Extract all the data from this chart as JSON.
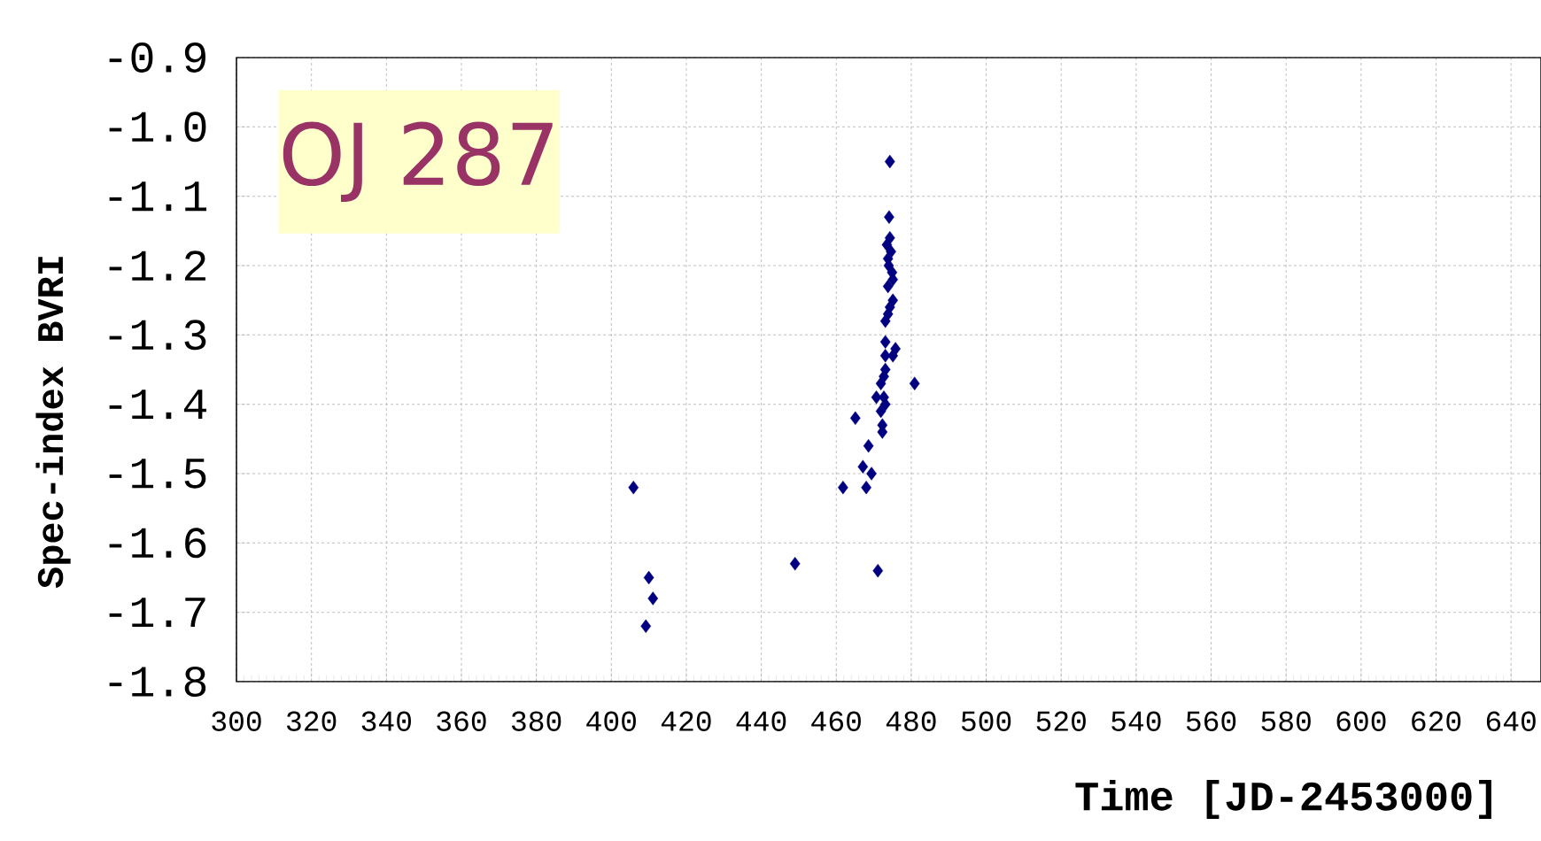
{
  "chart_data": {
    "type": "scatter",
    "xlabel": "Time [JD-2453000]",
    "ylabel": "Spec-index BVRI",
    "annotations": [
      "OJ 287"
    ],
    "x": [
      474.3,
      474.1,
      474.3,
      473.5,
      474.6,
      473.8,
      474.0,
      474.9,
      475.1,
      473.8,
      475.1,
      474.3,
      473.8,
      473.1,
      473.1,
      475.8,
      475.1,
      473.1,
      473.1,
      472.7,
      471.9,
      470.7,
      472.7,
      473.1,
      471.9,
      472.3,
      472.3,
      480.9,
      465.1,
      468.6,
      467.1,
      469.4,
      468.0,
      461.8,
      405.9,
      410.0,
      411.1,
      409.2,
      449.0,
      471.1
    ],
    "values": [
      -1.05,
      -1.13,
      -1.16,
      -1.17,
      -1.18,
      -1.19,
      -1.2,
      -1.21,
      -1.22,
      -1.23,
      -1.25,
      -1.26,
      -1.27,
      -1.28,
      -1.31,
      -1.32,
      -1.33,
      -1.33,
      -1.35,
      -1.36,
      -1.37,
      -1.39,
      -1.39,
      -1.4,
      -1.41,
      -1.43,
      -1.44,
      -1.37,
      -1.42,
      -1.46,
      -1.49,
      -1.5,
      -1.52,
      -1.52,
      -1.52,
      -1.65,
      -1.68,
      -1.72,
      -1.63,
      -1.64
    ],
    "color": "#000080",
    "marker": "diamond",
    "xlim": [
      300,
      648
    ],
    "ylim": [
      -1.8,
      -0.9
    ],
    "xticks": [
      300,
      320,
      340,
      360,
      380,
      400,
      420,
      440,
      460,
      480,
      500,
      520,
      540,
      560,
      580,
      600,
      620,
      640
    ],
    "yticks": [
      {
        "value": -1.8,
        "label": "-1.8"
      },
      {
        "value": -1.7,
        "label": "-1.7"
      },
      {
        "value": -1.6,
        "label": "-1.6"
      },
      {
        "value": -1.5,
        "label": "-1.5"
      },
      {
        "value": -1.4,
        "label": "-1.4"
      },
      {
        "value": -1.3,
        "label": "-1.3"
      },
      {
        "value": -1.2,
        "label": "-1.2"
      },
      {
        "value": -1.1,
        "label": "-1.1"
      },
      {
        "value": -1.0,
        "label": "-1.0"
      },
      {
        "value": -0.9,
        "label": "-0.9"
      }
    ],
    "grid": true
  }
}
